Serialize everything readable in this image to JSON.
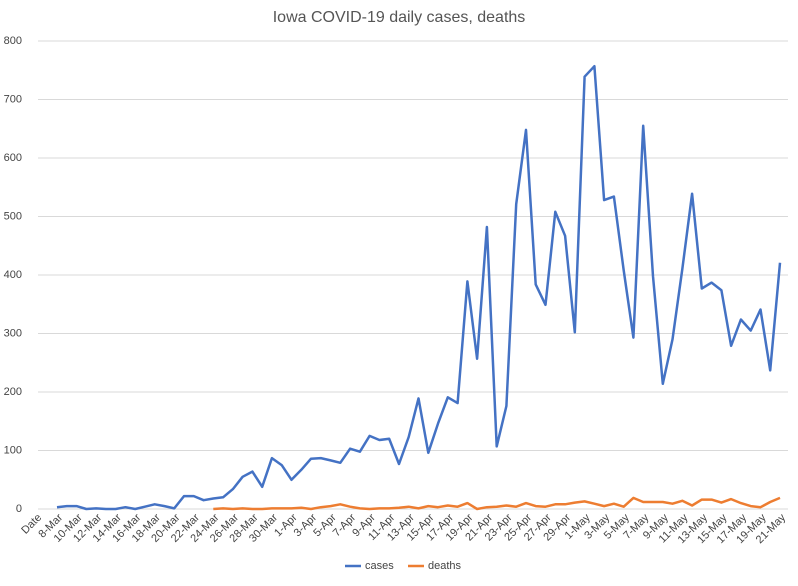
{
  "chart_data": {
    "type": "line",
    "title": "Iowa COVID-19 daily cases, deaths",
    "x_label": "Date",
    "categories": [
      "8-Mar",
      null,
      "10-Mar",
      null,
      "12-Mar",
      null,
      "14-Mar",
      null,
      "16-Mar",
      null,
      "18-Mar",
      null,
      "20-Mar",
      null,
      "22-Mar",
      null,
      "24-Mar",
      null,
      "26-Mar",
      null,
      "28-Mar",
      null,
      "30-Mar",
      null,
      "1-Apr",
      null,
      "3-Apr",
      null,
      "5-Apr",
      null,
      "7-Apr",
      null,
      "9-Apr",
      null,
      "11-Apr",
      null,
      "13-Apr",
      null,
      "15-Apr",
      null,
      "17-Apr",
      null,
      "19-Apr",
      null,
      "21-Apr",
      null,
      "23-Apr",
      null,
      "25-Apr",
      null,
      "27-Apr",
      null,
      "29-Apr",
      null,
      "1-May",
      null,
      "3-May",
      null,
      "5-May",
      null,
      "7-May",
      null,
      "9-May",
      null,
      "11-May",
      null,
      "13-May",
      null,
      "15-May",
      null,
      "17-May",
      null,
      "19-May",
      null,
      "21-May"
    ],
    "series": [
      {
        "name": "cases",
        "color": "#4472c4",
        "values": [
          3,
          5,
          5,
          0,
          1,
          0,
          0,
          3,
          0,
          4,
          8,
          5,
          1,
          22,
          22,
          15,
          18,
          20,
          34,
          55,
          64,
          38,
          87,
          75,
          50,
          67,
          86,
          87,
          83,
          79,
          103,
          98,
          125,
          118,
          120,
          77,
          123,
          189,
          96,
          146,
          191,
          181,
          389,
          257,
          482,
          107,
          176,
          521,
          648,
          384,
          349,
          508,
          467,
          302,
          739,
          757,
          528,
          534,
          408,
          293,
          655,
          398,
          214,
          290,
          410,
          539,
          377,
          387,
          374,
          279,
          324,
          305,
          341,
          237,
          421
        ]
      },
      {
        "name": "deaths",
        "color": "#ed7d31",
        "values": [
          null,
          null,
          null,
          null,
          null,
          null,
          null,
          null,
          null,
          null,
          null,
          null,
          null,
          null,
          null,
          null,
          0,
          1,
          0,
          1,
          0,
          0,
          1,
          1,
          1,
          2,
          0,
          3,
          5,
          8,
          4,
          1,
          0,
          1,
          1,
          2,
          4,
          1,
          5,
          3,
          6,
          4,
          10,
          0,
          3,
          4,
          6,
          4,
          10,
          5,
          4,
          8,
          8,
          11,
          13,
          9,
          5,
          9,
          4,
          19,
          12,
          12,
          12,
          9,
          14,
          6,
          16,
          16,
          11,
          17,
          10,
          5,
          3,
          12,
          19
        ]
      }
    ],
    "ylim": [
      0,
      800
    ],
    "yticks": [
      0,
      100,
      200,
      300,
      400,
      500,
      600,
      700,
      800
    ],
    "grid": true,
    "legend": "bottom"
  }
}
